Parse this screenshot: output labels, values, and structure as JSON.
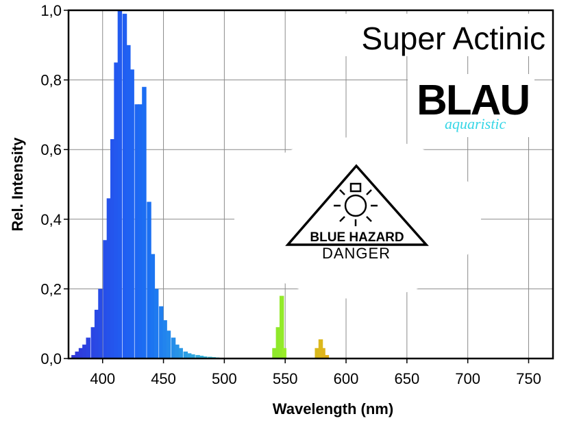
{
  "chart_data": {
    "type": "bar",
    "title": "Super Actinic",
    "xlabel": "Wavelength (nm)",
    "ylabel": "Rel. Intensity",
    "xlim": [
      372,
      770
    ],
    "ylim": [
      0,
      1.0
    ],
    "x_ticks": [
      "400",
      "450",
      "500",
      "550",
      "600",
      "650",
      "700",
      "750"
    ],
    "y_ticks": [
      "0,0",
      "0,2",
      "0,4",
      "0,6",
      "0,8",
      "1,0"
    ],
    "grid": true,
    "bin_width_nm": 3.3,
    "x": [
      376,
      379,
      382,
      385,
      388,
      392,
      395,
      398,
      402,
      405,
      408,
      411,
      414,
      418,
      421,
      424,
      428,
      431,
      434,
      438,
      441,
      444,
      448,
      451,
      454,
      458,
      461,
      464,
      468,
      471,
      474,
      478,
      481,
      484,
      488,
      491,
      494,
      498,
      541,
      544,
      547,
      549,
      576,
      579,
      581,
      584
    ],
    "values": [
      0.01,
      0.02,
      0.03,
      0.04,
      0.06,
      0.09,
      0.14,
      0.2,
      0.34,
      0.46,
      0.63,
      0.85,
      1.0,
      0.99,
      0.9,
      0.83,
      0.73,
      0.73,
      0.78,
      0.45,
      0.3,
      0.2,
      0.15,
      0.11,
      0.08,
      0.06,
      0.04,
      0.03,
      0.02,
      0.015,
      0.012,
      0.01,
      0.008,
      0.006,
      0.005,
      0.004,
      0.003,
      0.002,
      0.03,
      0.09,
      0.18,
      0.03,
      0.03,
      0.055,
      0.03,
      0.01
    ],
    "colors": [
      "#3038d8",
      "#2f3adb",
      "#2e3ddd",
      "#2d40df",
      "#2c43e1",
      "#2a46e3",
      "#2949e5",
      "#284ce7",
      "#264fe9",
      "#2552eb",
      "#2455ed",
      "#2358ef",
      "#225bf0",
      "#215ef1",
      "#2061f2",
      "#1f64f2",
      "#1e67f2",
      "#1d6af2",
      "#1c6df2",
      "#1b70f2",
      "#1c75f1",
      "#1e7af0",
      "#207fef",
      "#2284ee",
      "#2489ec",
      "#268eea",
      "#2893e8",
      "#2a98e6",
      "#2c9de4",
      "#2ea2e2",
      "#30a7e0",
      "#32acde",
      "#34b1dc",
      "#36b6da",
      "#38bbd8",
      "#3ac0d6",
      "#3cc5d4",
      "#3ecad2",
      "#8ee82a",
      "#8fe82a",
      "#93ea2a",
      "#9aec2a",
      "#d8b81c",
      "#dcb81c",
      "#dfb51c",
      "#e1b01c"
    ],
    "logo": {
      "text": "BLAU",
      "subtext": "aquaristic"
    },
    "hazard_sign": {
      "label": "BLUE HAZARD",
      "sublabel": "DANGER",
      "icon": "light-bulb-rays-icon"
    }
  }
}
